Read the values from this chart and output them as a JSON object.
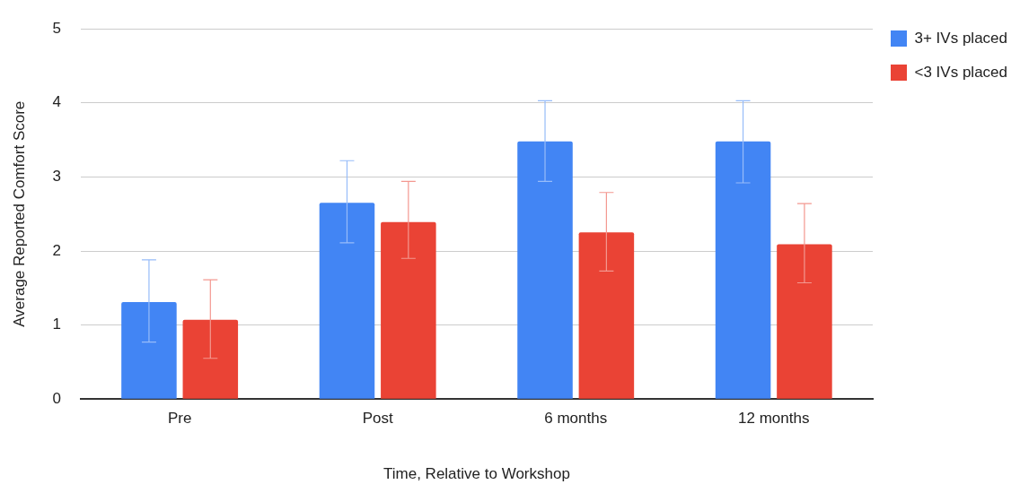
{
  "chart_data": {
    "type": "bar",
    "xlabel": "Time, Relative to Workshop",
    "ylabel": "Average Reported Comfort Score",
    "categories": [
      "Pre",
      "Post",
      "6 months",
      "12 months"
    ],
    "series": [
      {
        "name": "3+ IVs placed",
        "color": "#4285f4",
        "values": [
          1.31,
          2.65,
          3.48,
          3.48
        ],
        "errors": [
          [
            0.77,
            1.88
          ],
          [
            2.11,
            3.22
          ],
          [
            2.94,
            4.03
          ],
          [
            2.92,
            4.03
          ]
        ]
      },
      {
        "name": "<3 IVs placed",
        "color": "#ea4335",
        "values": [
          1.07,
          2.39,
          2.25,
          2.09
        ],
        "errors": [
          [
            0.55,
            1.61
          ],
          [
            1.9,
            2.94
          ],
          [
            1.73,
            2.79
          ],
          [
            1.57,
            2.64
          ]
        ]
      }
    ],
    "ylim": [
      0,
      5
    ],
    "yticks": [
      0,
      1,
      2,
      3,
      4,
      5
    ],
    "grid": "y",
    "legend": "top right"
  }
}
